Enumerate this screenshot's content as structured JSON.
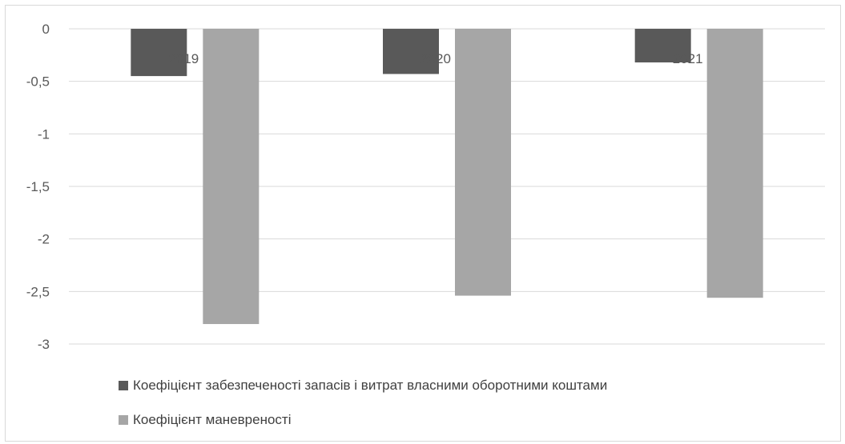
{
  "chart_data": {
    "type": "bar",
    "categories": [
      "2019",
      "2020",
      "2021"
    ],
    "series": [
      {
        "name": "Коефіцієнт забезпеченості запасів і витрат власними оборотними коштами",
        "values": [
          -0.45,
          -0.43,
          -0.32
        ],
        "color": "#595959"
      },
      {
        "name": "Коефіцієнт маневреності",
        "values": [
          -2.81,
          -2.54,
          -2.56
        ],
        "color": "#a6a6a6"
      }
    ],
    "yticks": [
      "0",
      "-0,5",
      "-1",
      "-1,5",
      "-2",
      "-2,5",
      "-3"
    ],
    "ylim": [
      -3,
      0
    ],
    "grid": true,
    "legend_position": "bottom-left"
  }
}
